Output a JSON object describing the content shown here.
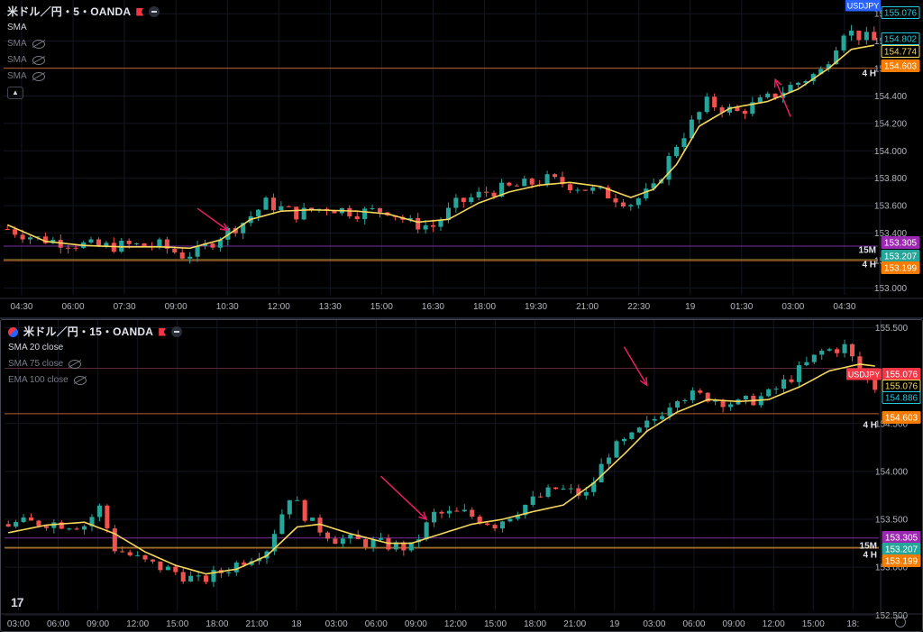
{
  "colors": {
    "up": "#26a69a",
    "down": "#ef5350",
    "sma": "#f5d75a",
    "hline_orange": "#b4612c",
    "hline_purple": "#7b2fa3",
    "hline_olive": "#8a7a2a",
    "arrow": "#e91e63",
    "tag_orange": "#f57c00",
    "tag_purple": "#9c27b0",
    "tag_green": "#26a69a",
    "tag_yellow_text": "#f5d75a",
    "tag_cyan_text": "#26c6da",
    "tag_red": "#f23645"
  },
  "top_pane": {
    "title": "米ドル／円・5・OANDA",
    "indicators": [
      {
        "label": "SMA",
        "hidden": false
      },
      {
        "label": "SMA",
        "hidden": true
      },
      {
        "label": "SMA",
        "hidden": true
      },
      {
        "label": "SMA",
        "hidden": true
      }
    ],
    "collapse_icon": "chevron-up-icon",
    "symbol_tag": "USDJPY",
    "current_price": "155.076",
    "right_labels": [
      {
        "text": "154.802",
        "kind": "cyan-outline"
      },
      {
        "text": "154.774",
        "kind": "yellow-outline"
      },
      {
        "text": "154.603",
        "kind": "orange"
      },
      {
        "text": "153.305",
        "kind": "purple"
      },
      {
        "text": "153.207",
        "kind": "green"
      },
      {
        "text": "153.199",
        "kind": "orange"
      }
    ],
    "line_labels": [
      "4 H",
      "15M",
      "4 H"
    ]
  },
  "bottom_pane": {
    "title": "米ドル／円・15・OANDA",
    "indicators": [
      {
        "label": "SMA 20 close",
        "hidden": false
      },
      {
        "label": "SMA 75 close",
        "hidden": true
      },
      {
        "label": "EMA 100 close",
        "hidden": true
      }
    ],
    "symbol_tag": "USDJPY",
    "right_labels": [
      {
        "text": "155.076",
        "kind": "red"
      },
      {
        "text": "155.076",
        "kind": "yellow-outline"
      },
      {
        "text": "154.886",
        "kind": "cyan-outline"
      },
      {
        "text": "154.603",
        "kind": "orange"
      },
      {
        "text": "153.305",
        "kind": "purple"
      },
      {
        "text": "153.207",
        "kind": "green"
      },
      {
        "text": "153.199",
        "kind": "orange"
      }
    ],
    "line_labels": [
      "4 H",
      "15M",
      "4 H"
    ],
    "logo": "17"
  },
  "chart_data": [
    {
      "type": "candlestick",
      "title": "米ドル／円・5・OANDA",
      "ylim": [
        152.95,
        155.1
      ],
      "y_ticks": [
        "155.000",
        "154.800",
        "154.600",
        "154.400",
        "154.200",
        "154.000",
        "153.800",
        "153.600",
        "153.400",
        "153.200",
        "153.000"
      ],
      "y_tick_values": [
        155.0,
        154.8,
        154.6,
        154.4,
        154.2,
        154.0,
        153.8,
        153.6,
        153.4,
        153.2,
        153.0
      ],
      "x_ticks": [
        "04:30",
        "06:00",
        "07:30",
        "09:00",
        "10:30",
        "12:00",
        "13:30",
        "15:00",
        "16:30",
        "18:00",
        "19:30",
        "21:00",
        "22:30",
        "19",
        "01:30",
        "03:00",
        "04:30"
      ],
      "hlines": [
        154.603,
        153.305,
        153.207,
        153.199
      ],
      "close_path": [
        [
          0,
          153.43
        ],
        [
          4,
          153.36
        ],
        [
          8,
          153.33
        ],
        [
          12,
          153.3
        ],
        [
          16,
          153.31
        ],
        [
          20,
          153.31
        ],
        [
          23,
          153.24
        ],
        [
          25,
          153.26
        ],
        [
          28,
          153.38
        ],
        [
          31,
          153.48
        ],
        [
          34,
          153.62
        ],
        [
          38,
          153.54
        ],
        [
          42,
          153.59
        ],
        [
          46,
          153.55
        ],
        [
          50,
          153.57
        ],
        [
          53,
          153.47
        ],
        [
          56,
          153.45
        ],
        [
          59,
          153.61
        ],
        [
          63,
          153.7
        ],
        [
          67,
          153.74
        ],
        [
          71,
          153.79
        ],
        [
          75,
          153.74
        ],
        [
          79,
          153.68
        ],
        [
          82,
          153.62
        ],
        [
          85,
          153.72
        ],
        [
          88,
          154.05
        ],
        [
          92,
          154.35
        ],
        [
          96,
          154.28
        ],
        [
          100,
          154.38
        ],
        [
          104,
          154.5
        ],
        [
          107,
          154.58
        ],
        [
          110,
          154.88
        ],
        [
          114,
          154.8
        ]
      ],
      "sma_path": [
        [
          0,
          153.46
        ],
        [
          5,
          153.34
        ],
        [
          10,
          153.31
        ],
        [
          15,
          153.3
        ],
        [
          20,
          153.3
        ],
        [
          24,
          153.29
        ],
        [
          28,
          153.35
        ],
        [
          32,
          153.5
        ],
        [
          36,
          153.56
        ],
        [
          40,
          153.57
        ],
        [
          46,
          153.56
        ],
        [
          50,
          153.54
        ],
        [
          54,
          153.48
        ],
        [
          58,
          153.5
        ],
        [
          62,
          153.62
        ],
        [
          66,
          153.7
        ],
        [
          70,
          153.75
        ],
        [
          74,
          153.77
        ],
        [
          78,
          153.74
        ],
        [
          82,
          153.66
        ],
        [
          85,
          153.72
        ],
        [
          88,
          153.9
        ],
        [
          91,
          154.18
        ],
        [
          95,
          154.31
        ],
        [
          100,
          154.36
        ],
        [
          104,
          154.45
        ],
        [
          108,
          154.6
        ],
        [
          111,
          154.74
        ],
        [
          114,
          154.77
        ]
      ],
      "n": 115,
      "arrows": [
        {
          "from": [
            25,
            153.58
          ],
          "to": [
            29,
            153.42
          ]
        },
        {
          "from": [
            103,
            154.25
          ],
          "to": [
            101,
            154.52
          ]
        }
      ]
    },
    {
      "type": "candlestick",
      "title": "米ドル／円・15・OANDA",
      "ylim": [
        152.55,
        155.58
      ],
      "y_ticks": [
        "155.500",
        "154.500",
        "154.000",
        "153.500",
        "153.000",
        "152.500"
      ],
      "y_tick_values": [
        155.5,
        154.5,
        154.0,
        153.5,
        153.0,
        152.5
      ],
      "x_ticks": [
        "03:00",
        "06:00",
        "09:00",
        "12:00",
        "15:00",
        "18:00",
        "21:00",
        "18",
        "03:00",
        "06:00",
        "09:00",
        "12:00",
        "15:00",
        "18:00",
        "21:00",
        "19",
        "03:00",
        "06:00",
        "09:00",
        "12:00",
        "15:00",
        "18:"
      ],
      "hlines": [
        155.076,
        154.603,
        153.305,
        153.207,
        153.199
      ],
      "close_path": [
        [
          0,
          153.45
        ],
        [
          5,
          153.47
        ],
        [
          10,
          153.44
        ],
        [
          12,
          153.62
        ],
        [
          14,
          153.2
        ],
        [
          18,
          153.05
        ],
        [
          22,
          152.95
        ],
        [
          25,
          152.85
        ],
        [
          28,
          152.95
        ],
        [
          31,
          153.08
        ],
        [
          34,
          153.2
        ],
        [
          37,
          153.75
        ],
        [
          40,
          153.45
        ],
        [
          43,
          153.3
        ],
        [
          47,
          153.26
        ],
        [
          51,
          153.22
        ],
        [
          53,
          153.2
        ],
        [
          56,
          153.55
        ],
        [
          60,
          153.56
        ],
        [
          64,
          153.45
        ],
        [
          68,
          153.65
        ],
        [
          72,
          153.82
        ],
        [
          76,
          153.75
        ],
        [
          79,
          154.2
        ],
        [
          82,
          154.35
        ],
        [
          85,
          154.55
        ],
        [
          88,
          154.8
        ],
        [
          92,
          154.78
        ],
        [
          96,
          154.7
        ],
        [
          100,
          154.8
        ],
        [
          104,
          155.05
        ],
        [
          107,
          155.25
        ],
        [
          110,
          155.3
        ],
        [
          112,
          155.05
        ],
        [
          114,
          154.88
        ]
      ],
      "sma_path": [
        [
          0,
          153.36
        ],
        [
          5,
          153.44
        ],
        [
          10,
          153.47
        ],
        [
          14,
          153.35
        ],
        [
          18,
          153.16
        ],
        [
          22,
          153.02
        ],
        [
          26,
          152.93
        ],
        [
          30,
          152.98
        ],
        [
          34,
          153.12
        ],
        [
          38,
          153.42
        ],
        [
          41,
          153.45
        ],
        [
          45,
          153.35
        ],
        [
          50,
          153.25
        ],
        [
          53,
          153.25
        ],
        [
          57,
          153.35
        ],
        [
          61,
          153.45
        ],
        [
          65,
          153.5
        ],
        [
          69,
          153.58
        ],
        [
          73,
          153.65
        ],
        [
          77,
          153.88
        ],
        [
          81,
          154.18
        ],
        [
          84,
          154.42
        ],
        [
          88,
          154.62
        ],
        [
          92,
          154.75
        ],
        [
          96,
          154.73
        ],
        [
          100,
          154.75
        ],
        [
          104,
          154.88
        ],
        [
          108,
          155.05
        ],
        [
          112,
          155.12
        ],
        [
          114,
          155.1
        ]
      ],
      "n": 115,
      "arrows": [
        {
          "from": [
            49,
            153.95
          ],
          "to": [
            55,
            153.5
          ]
        },
        {
          "from": [
            81,
            155.3
          ],
          "to": [
            84,
            154.9
          ]
        }
      ]
    }
  ]
}
